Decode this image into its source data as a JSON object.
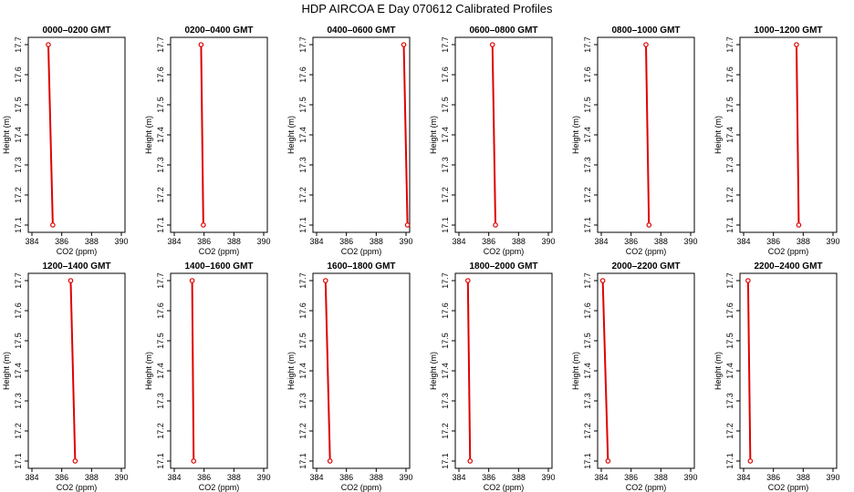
{
  "title": "HDP  AIRCOA E  Day 070612  Calibrated Profiles",
  "colors": {
    "line": "#e00000",
    "marker": "#e00000",
    "frame": "#000000"
  },
  "chart_data": {
    "type": "line",
    "title": "HDP  AIRCOA E  Day 070612  Calibrated Profiles",
    "xlabel": "CO2 (ppm)",
    "ylabel": "Height (m)",
    "xlim": [
      384,
      390
    ],
    "ylim": [
      17.1,
      17.7
    ],
    "xticks": [
      "384",
      "386",
      "388",
      "390"
    ],
    "yticks": [
      "17.1",
      "17.2",
      "17.3",
      "17.4",
      "17.5",
      "17.6",
      "17.7"
    ],
    "grid": false,
    "panels": [
      {
        "title": "0000–0200 GMT",
        "series": [
          {
            "x": [
              385.1,
              385.4
            ],
            "y": [
              17.7,
              17.1
            ]
          }
        ]
      },
      {
        "title": "0200–0400 GMT",
        "series": [
          {
            "x": [
              385.8,
              385.95
            ],
            "y": [
              17.7,
              17.1
            ]
          }
        ]
      },
      {
        "title": "0400–0600 GMT",
        "series": [
          {
            "x": [
              389.85,
              390.1
            ],
            "y": [
              17.7,
              17.1
            ]
          }
        ]
      },
      {
        "title": "0600–0800 GMT",
        "series": [
          {
            "x": [
              386.25,
              386.45
            ],
            "y": [
              17.7,
              17.1
            ]
          }
        ]
      },
      {
        "title": "0800–1000 GMT",
        "series": [
          {
            "x": [
              387.0,
              387.2
            ],
            "y": [
              17.7,
              17.1
            ]
          }
        ]
      },
      {
        "title": "1000–1200 GMT",
        "series": [
          {
            "x": [
              387.55,
              387.7
            ],
            "y": [
              17.7,
              17.1
            ]
          }
        ]
      },
      {
        "title": "1200–1400 GMT",
        "series": [
          {
            "x": [
              386.6,
              386.9
            ],
            "y": [
              17.7,
              17.1
            ]
          }
        ]
      },
      {
        "title": "1400–1600 GMT",
        "series": [
          {
            "x": [
              385.2,
              385.3
            ],
            "y": [
              17.7,
              17.1
            ]
          }
        ]
      },
      {
        "title": "1600–1800 GMT",
        "series": [
          {
            "x": [
              384.6,
              384.9
            ],
            "y": [
              17.7,
              17.1
            ]
          }
        ]
      },
      {
        "title": "1800–2000 GMT",
        "series": [
          {
            "x": [
              384.6,
              384.75
            ],
            "y": [
              17.7,
              17.1
            ]
          }
        ]
      },
      {
        "title": "2000–2200 GMT",
        "series": [
          {
            "x": [
              384.1,
              384.45
            ],
            "y": [
              17.7,
              17.1
            ]
          }
        ]
      },
      {
        "title": "2200–2400 GMT",
        "series": [
          {
            "x": [
              384.3,
              384.45
            ],
            "y": [
              17.7,
              17.1
            ]
          }
        ]
      }
    ]
  }
}
